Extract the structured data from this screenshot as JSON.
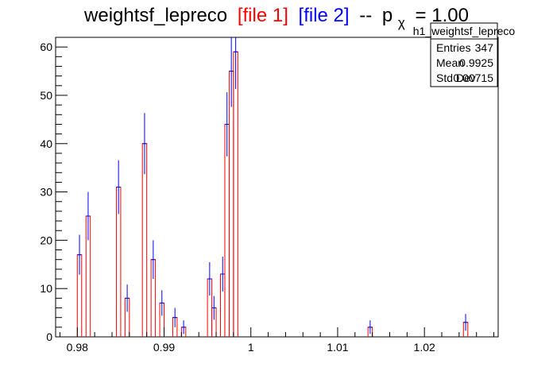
{
  "chart_data": {
    "type": "bar",
    "title": {
      "main": "weightsf_lepreco",
      "file1": "[file 1]",
      "file2": "[file 2]",
      "sep": "--",
      "p": "p",
      "sub": "χ",
      "eq": "= 1.00"
    },
    "xlabel": "",
    "ylabel": "",
    "xlim": [
      0.9775,
      1.0285
    ],
    "ylim": [
      0,
      62
    ],
    "xticks": [
      0.98,
      0.99,
      1.0,
      1.01,
      1.02
    ],
    "xtick_labels": [
      "0.98",
      "0.99",
      "1",
      "1.01",
      "1.02"
    ],
    "yticks": [
      0,
      10,
      20,
      30,
      40,
      50,
      60
    ],
    "ytick_labels": [
      "0",
      "10",
      "20",
      "30",
      "40",
      "50",
      "60"
    ],
    "bin_width": 0.0005,
    "bins_low_edge": [
      0.98,
      0.981,
      0.9845,
      0.9855,
      0.9875,
      0.9885,
      0.9895,
      0.991,
      0.992,
      0.995,
      0.9955,
      0.9965,
      0.997,
      0.9975,
      0.998,
      1.0135,
      1.0245
    ],
    "series": [
      {
        "name": "[file 1]",
        "color": "#ff0000",
        "values": [
          17,
          25,
          31,
          8,
          40,
          16,
          7,
          4,
          2,
          12,
          6,
          13,
          44,
          55,
          59,
          2,
          3
        ]
      },
      {
        "name": "[file 2]",
        "color": "#0000ff",
        "values": [
          17,
          25,
          31,
          8,
          40,
          16,
          7,
          4,
          2,
          12,
          6,
          13,
          44,
          55,
          59,
          2,
          3
        ]
      }
    ],
    "stats": {
      "name": "h1_weightsf_lepreco",
      "rows": [
        {
          "label": "Entries",
          "value": "347"
        },
        {
          "label": "Mean",
          "value": "0.9925"
        },
        {
          "label": "Std Dev",
          "value": "0.00715"
        }
      ],
      "placement": "top-right"
    }
  }
}
